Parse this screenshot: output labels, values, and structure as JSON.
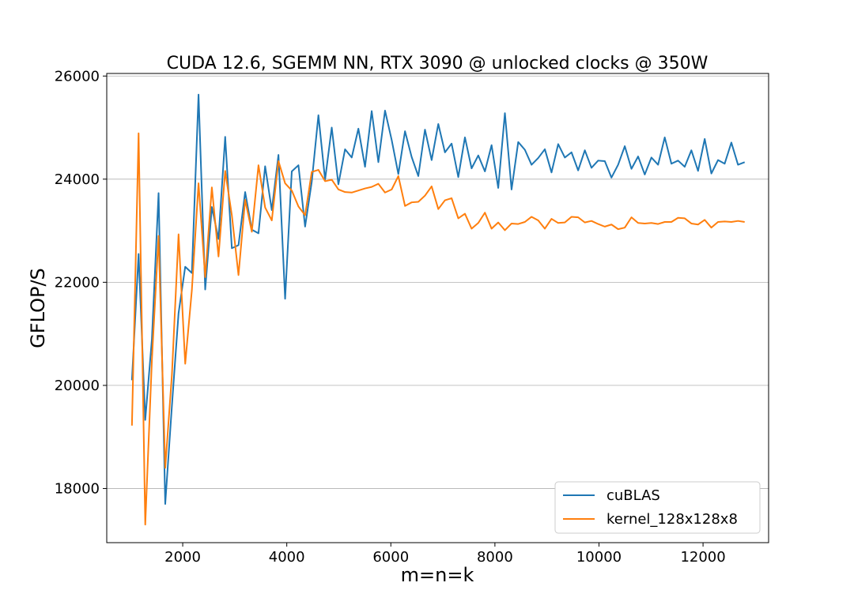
{
  "chart_data": {
    "type": "line",
    "title": "CUDA 12.6, SGEMM NN, RTX 3090 @ unlocked clocks @ 350W",
    "xlabel": "m=n=k",
    "ylabel": "GFLOP/S",
    "xlim": [
      540,
      13260
    ],
    "ylim": [
      16950,
      26050
    ],
    "xticks": [
      2000,
      4000,
      6000,
      8000,
      10000,
      12000
    ],
    "yticks": [
      18000,
      20000,
      22000,
      24000,
      26000
    ],
    "grid": "horizontal",
    "legend_position": "bottom-right",
    "x": [
      1024,
      1152,
      1280,
      1408,
      1536,
      1664,
      1792,
      1920,
      2048,
      2176,
      2304,
      2432,
      2560,
      2688,
      2816,
      2944,
      3072,
      3200,
      3328,
      3456,
      3584,
      3712,
      3840,
      3968,
      4096,
      4224,
      4352,
      4480,
      4608,
      4736,
      4864,
      4992,
      5120,
      5248,
      5376,
      5504,
      5632,
      5760,
      5888,
      6016,
      6144,
      6272,
      6400,
      6528,
      6656,
      6784,
      6912,
      7040,
      7168,
      7296,
      7424,
      7552,
      7680,
      7808,
      7936,
      8064,
      8192,
      8320,
      8448,
      8576,
      8704,
      8832,
      8960,
      9088,
      9216,
      9344,
      9472,
      9600,
      9728,
      9856,
      9984,
      10112,
      10240,
      10368,
      10496,
      10624,
      10752,
      10880,
      11008,
      11136,
      11264,
      11392,
      11520,
      11648,
      11776,
      11904,
      12032,
      12160,
      12288,
      12416,
      12544,
      12672,
      12800
    ],
    "series": [
      {
        "name": "cuBLAS",
        "color": "#1f77b4",
        "values": [
          20100,
          22550,
          19330,
          20900,
          23730,
          17700,
          19600,
          21400,
          22300,
          22180,
          25640,
          21860,
          23460,
          22840,
          24820,
          22660,
          22720,
          23750,
          23020,
          22950,
          24250,
          23400,
          24470,
          21680,
          24150,
          24270,
          23080,
          23950,
          25240,
          23990,
          25000,
          23900,
          24580,
          24420,
          24980,
          24240,
          25320,
          24330,
          25330,
          24760,
          24100,
          24930,
          24430,
          24060,
          24960,
          24370,
          25070,
          24520,
          24690,
          24040,
          24810,
          24210,
          24460,
          24150,
          24660,
          23830,
          25280,
          23800,
          24720,
          24570,
          24280,
          24410,
          24580,
          24130,
          24680,
          24420,
          24520,
          24170,
          24560,
          24220,
          24360,
          24350,
          24030,
          24280,
          24640,
          24200,
          24440,
          24090,
          24420,
          24280,
          24810,
          24300,
          24360,
          24240,
          24560,
          24160,
          24780,
          24110,
          24370,
          24300,
          24710,
          24280,
          24330
        ]
      },
      {
        "name": "kernel_128x128x8",
        "color": "#ff7f0e",
        "values": [
          19220,
          24890,
          17300,
          20500,
          22900,
          18400,
          20200,
          22930,
          20420,
          21850,
          23920,
          22100,
          23840,
          22500,
          24160,
          23300,
          22140,
          23600,
          22980,
          24270,
          23450,
          23200,
          24350,
          23920,
          23780,
          23470,
          23300,
          24140,
          24180,
          23960,
          23990,
          23800,
          23750,
          23740,
          23780,
          23820,
          23850,
          23910,
          23740,
          23800,
          24060,
          23480,
          23550,
          23560,
          23680,
          23860,
          23420,
          23590,
          23630,
          23240,
          23330,
          23040,
          23150,
          23350,
          23040,
          23160,
          23010,
          23140,
          23130,
          23170,
          23270,
          23200,
          23040,
          23230,
          23150,
          23160,
          23270,
          23260,
          23160,
          23190,
          23130,
          23080,
          23120,
          23030,
          23060,
          23260,
          23150,
          23140,
          23150,
          23130,
          23170,
          23170,
          23250,
          23240,
          23140,
          23120,
          23210,
          23060,
          23170,
          23180,
          23170,
          23190,
          23170
        ]
      }
    ]
  }
}
